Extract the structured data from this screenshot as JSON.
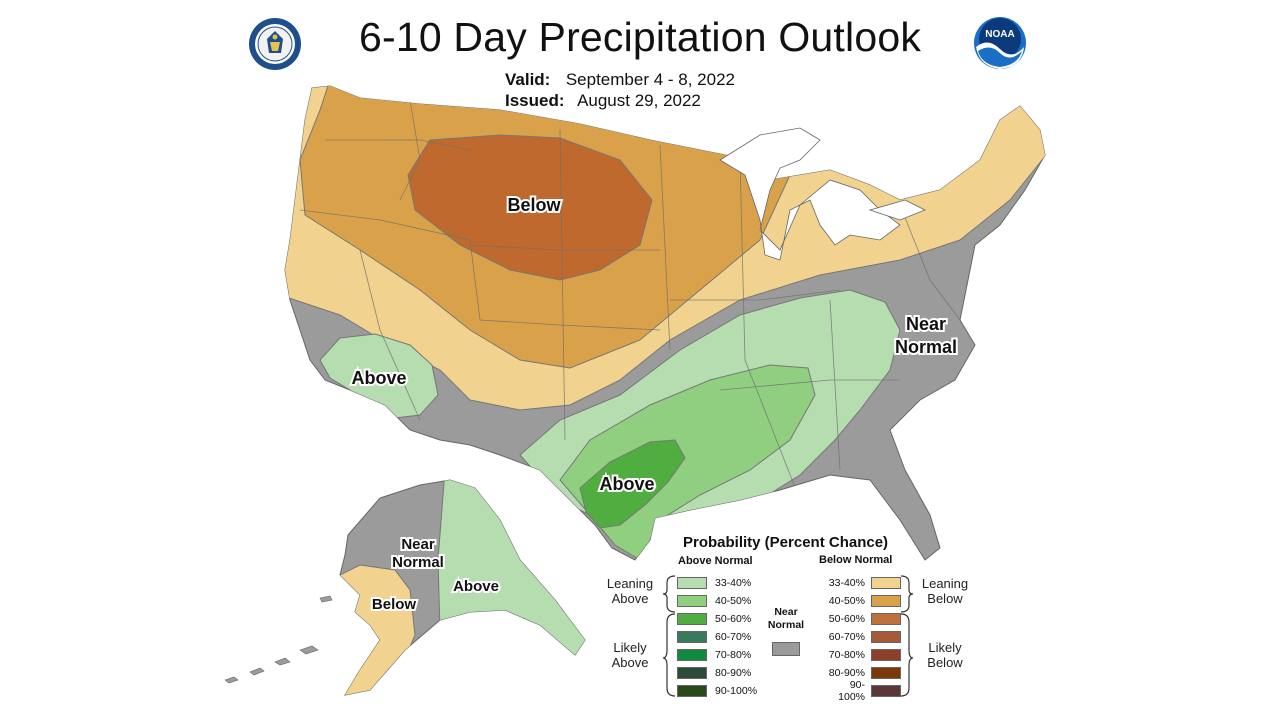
{
  "title": "6-10 Day Precipitation Outlook",
  "valid_label": "Valid:",
  "valid_value": "September 4 - 8, 2022",
  "issued_label": "Issued:",
  "issued_value": "August 29, 2022",
  "map_labels": {
    "below_north": "Below",
    "above_ca": "Above",
    "above_tx": "Above",
    "near_normal_east_1": "Near",
    "near_normal_east_2": "Normal",
    "ak_near_1": "Near",
    "ak_near_2": "Normal",
    "ak_below": "Below",
    "ak_above": "Above"
  },
  "legend": {
    "heading": "Probability (Percent Chance)",
    "above_normal": "Above Normal",
    "below_normal": "Below Normal",
    "near_normal_1": "Near",
    "near_normal_2": "Normal",
    "leaning_above_1": "Leaning",
    "leaning_above_2": "Above",
    "likely_above_1": "Likely",
    "likely_above_2": "Above",
    "leaning_below_1": "Leaning",
    "leaning_below_2": "Below",
    "likely_below_1": "Likely",
    "likely_below_2": "Below",
    "above_items": [
      {
        "range": "33-40%",
        "color": "#b5ddb0"
      },
      {
        "range": "40-50%",
        "color": "#8fcf7f"
      },
      {
        "range": "50-60%",
        "color": "#4fae3f"
      },
      {
        "range": "60-70%",
        "color": "#3a7a5c"
      },
      {
        "range": "70-80%",
        "color": "#0f8a3e"
      },
      {
        "range": "80-90%",
        "color": "#2d4a3a"
      },
      {
        "range": "90-100%",
        "color": "#2a4a1c"
      }
    ],
    "below_items": [
      {
        "range": "33-40%",
        "color": "#f1d28e"
      },
      {
        "range": "40-50%",
        "color": "#d9a24a"
      },
      {
        "range": "50-60%",
        "color": "#c0703a"
      },
      {
        "range": "60-70%",
        "color": "#a55a38"
      },
      {
        "range": "70-80%",
        "color": "#8e3f2c"
      },
      {
        "range": "80-90%",
        "color": "#7a3a08"
      },
      {
        "range": "90-100%",
        "color": "#5a3838"
      }
    ],
    "near_color": "#9b9b9b"
  },
  "colors": {
    "near_normal": "#9b9b9b",
    "leaning_below": "#f1d28e",
    "below_40_50": "#d9a24a",
    "below_50_60": "#c0692e",
    "leaning_above": "#b5ddb0",
    "above_40_50": "#8fcf7f",
    "above_50_60": "#4fae3f"
  }
}
